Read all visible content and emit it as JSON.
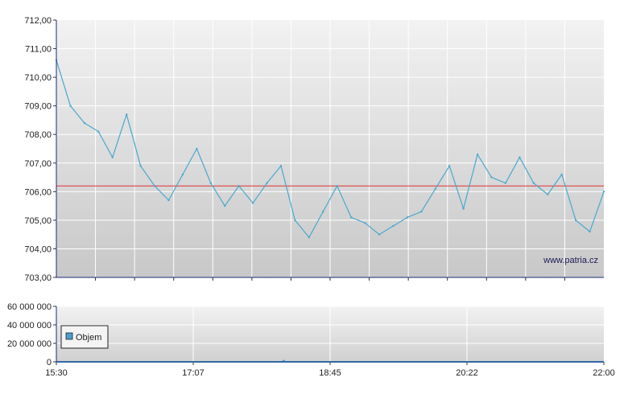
{
  "watermark": "www.patria.cz",
  "chart_data": [
    {
      "type": "line",
      "title": "",
      "xlabel": "",
      "ylabel": "",
      "ylim": [
        703.0,
        712.0
      ],
      "y_ticks": [
        "703,00",
        "704,00",
        "705,00",
        "706,00",
        "707,00",
        "708,00",
        "709,00",
        "710,00",
        "711,00",
        "712,00"
      ],
      "x_range": [
        "15:30",
        "22:00"
      ],
      "reference_line": {
        "value": 706.2,
        "color": "#e03030"
      },
      "series": [
        {
          "color": "#4aa8d0",
          "x": [
            "15:30",
            "15:40",
            "15:50",
            "16:00",
            "16:10",
            "16:20",
            "16:30",
            "16:40",
            "16:50",
            "17:00",
            "17:10",
            "17:20",
            "17:30",
            "17:40",
            "17:50",
            "18:00",
            "18:10",
            "18:20",
            "18:30",
            "18:40",
            "18:50",
            "19:00",
            "19:10",
            "19:20",
            "19:30",
            "19:40",
            "19:50",
            "20:00",
            "20:10",
            "20:20",
            "20:30",
            "20:40",
            "20:50",
            "21:00",
            "21:10",
            "21:20",
            "21:30",
            "21:40",
            "21:50",
            "22:00"
          ],
          "values": [
            710.6,
            709.0,
            708.4,
            708.1,
            707.2,
            708.7,
            706.9,
            706.2,
            705.7,
            706.6,
            707.5,
            706.3,
            705.5,
            706.2,
            705.6,
            706.3,
            706.9,
            705.0,
            704.4,
            705.3,
            706.2,
            705.1,
            704.9,
            704.5,
            704.8,
            705.1,
            705.3,
            706.1,
            706.9,
            705.4,
            707.3,
            706.5,
            706.3,
            707.2,
            706.3,
            705.9,
            706.6,
            705.0,
            704.6,
            706.0
          ]
        }
      ],
      "grid": true
    },
    {
      "type": "bar",
      "title": "",
      "ylim": [
        0,
        60000000
      ],
      "y_ticks": [
        "0",
        "20 000 000",
        "40 000 000",
        "60 000 000"
      ],
      "x_ticks": [
        "15:30",
        "17:07",
        "18:45",
        "20:22",
        "22:00"
      ],
      "legend": {
        "label": "Objem",
        "color": "#4a9fd0",
        "placement": "left"
      },
      "series": [
        {
          "name": "Objem",
          "x": [
            "18:12"
          ],
          "values": [
            2000000
          ]
        }
      ],
      "grid": true
    }
  ]
}
